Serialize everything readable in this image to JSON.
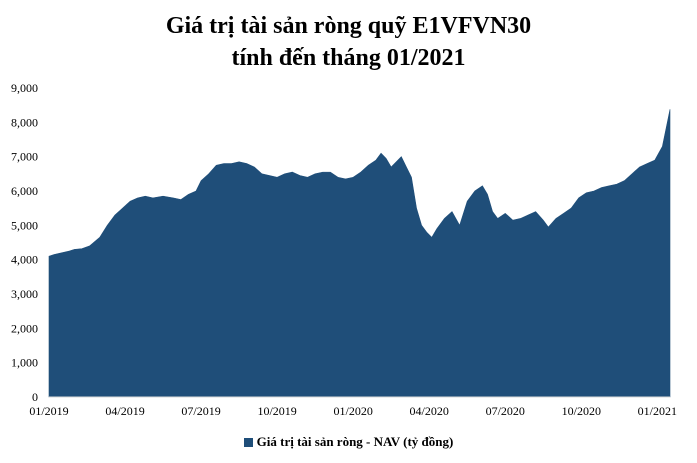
{
  "chart_data": {
    "type": "area",
    "title_lines": [
      "Giá trị tài sản ròng quỹ E1VFVN30",
      "tính đến tháng 01/2021"
    ],
    "xlabel": "",
    "ylabel": "",
    "ylim": [
      0,
      9000
    ],
    "y_ticks": [
      "0",
      "1,000",
      "2,000",
      "3,000",
      "4,000",
      "5,000",
      "6,000",
      "7,000",
      "8,000",
      "9,000"
    ],
    "y_tick_values": [
      0,
      1000,
      2000,
      3000,
      4000,
      5000,
      6000,
      7000,
      8000,
      9000
    ],
    "x_ticks": [
      "01/2019",
      "04/2019",
      "07/2019",
      "10/2019",
      "01/2020",
      "04/2020",
      "07/2020",
      "10/2020",
      "01/2021"
    ],
    "x_tick_months": [
      0,
      3,
      6,
      9,
      12,
      15,
      18,
      21,
      24
    ],
    "x_max_month": 24.5,
    "grid": false,
    "legend_position": "bottom",
    "series": [
      {
        "name": "Giá trị tài sản ròng - NAV (tỷ đồng)",
        "color": "#1f4e79",
        "points": [
          [
            0.0,
            4100
          ],
          [
            0.2,
            4150
          ],
          [
            0.5,
            4200
          ],
          [
            0.8,
            4250
          ],
          [
            1.0,
            4300
          ],
          [
            1.3,
            4320
          ],
          [
            1.6,
            4400
          ],
          [
            2.0,
            4650
          ],
          [
            2.3,
            5000
          ],
          [
            2.6,
            5300
          ],
          [
            2.9,
            5500
          ],
          [
            3.2,
            5700
          ],
          [
            3.5,
            5800
          ],
          [
            3.8,
            5850
          ],
          [
            4.1,
            5800
          ],
          [
            4.5,
            5850
          ],
          [
            4.9,
            5800
          ],
          [
            5.2,
            5750
          ],
          [
            5.5,
            5900
          ],
          [
            5.8,
            6000
          ],
          [
            6.0,
            6300
          ],
          [
            6.3,
            6500
          ],
          [
            6.6,
            6750
          ],
          [
            6.9,
            6800
          ],
          [
            7.2,
            6800
          ],
          [
            7.5,
            6850
          ],
          [
            7.8,
            6800
          ],
          [
            8.1,
            6700
          ],
          [
            8.4,
            6500
          ],
          [
            8.7,
            6450
          ],
          [
            9.0,
            6400
          ],
          [
            9.3,
            6500
          ],
          [
            9.6,
            6550
          ],
          [
            9.9,
            6450
          ],
          [
            10.2,
            6400
          ],
          [
            10.5,
            6500
          ],
          [
            10.8,
            6550
          ],
          [
            11.1,
            6550
          ],
          [
            11.4,
            6400
          ],
          [
            11.7,
            6350
          ],
          [
            12.0,
            6400
          ],
          [
            12.3,
            6550
          ],
          [
            12.6,
            6750
          ],
          [
            12.9,
            6900
          ],
          [
            13.1,
            7100
          ],
          [
            13.3,
            6950
          ],
          [
            13.5,
            6700
          ],
          [
            13.7,
            6850
          ],
          [
            13.9,
            7000
          ],
          [
            14.1,
            6700
          ],
          [
            14.3,
            6400
          ],
          [
            14.5,
            5500
          ],
          [
            14.7,
            5000
          ],
          [
            14.9,
            4800
          ],
          [
            15.1,
            4650
          ],
          [
            15.3,
            4900
          ],
          [
            15.6,
            5200
          ],
          [
            15.9,
            5400
          ],
          [
            16.2,
            5000
          ],
          [
            16.5,
            5700
          ],
          [
            16.8,
            6000
          ],
          [
            17.1,
            6150
          ],
          [
            17.3,
            5900
          ],
          [
            17.5,
            5400
          ],
          [
            17.7,
            5200
          ],
          [
            18.0,
            5350
          ],
          [
            18.3,
            5150
          ],
          [
            18.6,
            5200
          ],
          [
            18.9,
            5300
          ],
          [
            19.2,
            5400
          ],
          [
            19.5,
            5150
          ],
          [
            19.7,
            4950
          ],
          [
            20.0,
            5200
          ],
          [
            20.3,
            5350
          ],
          [
            20.6,
            5500
          ],
          [
            20.9,
            5800
          ],
          [
            21.2,
            5950
          ],
          [
            21.5,
            6000
          ],
          [
            21.8,
            6100
          ],
          [
            22.1,
            6150
          ],
          [
            22.4,
            6200
          ],
          [
            22.7,
            6300
          ],
          [
            23.0,
            6500
          ],
          [
            23.3,
            6700
          ],
          [
            23.6,
            6800
          ],
          [
            23.9,
            6900
          ],
          [
            24.2,
            7300
          ],
          [
            24.5,
            8380
          ]
        ]
      }
    ]
  }
}
